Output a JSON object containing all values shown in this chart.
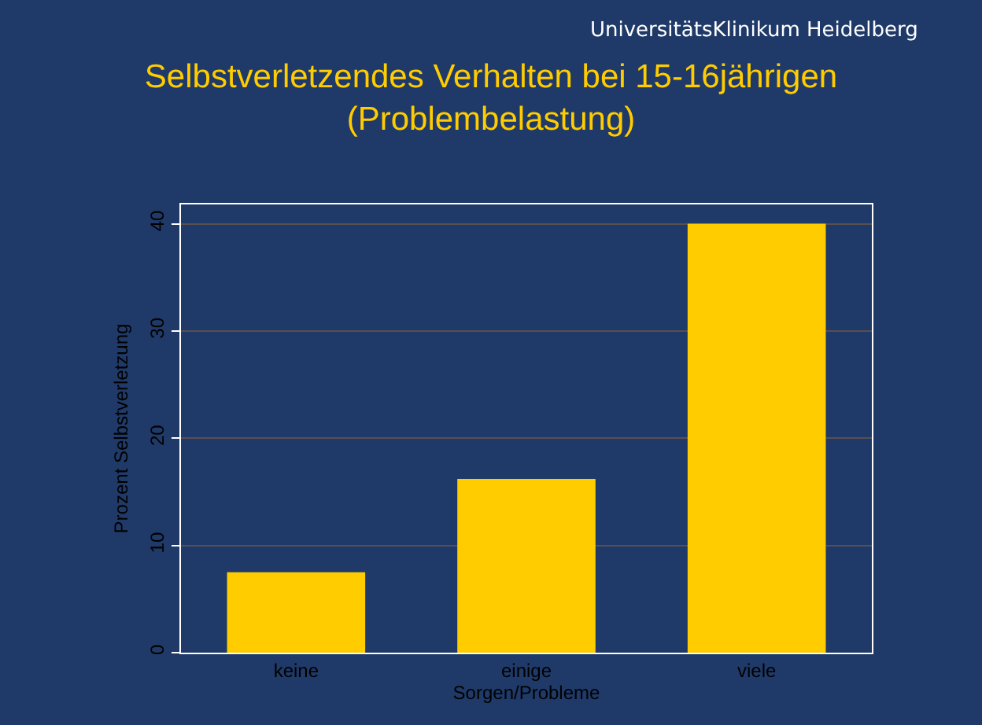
{
  "chart_data": {
    "type": "bar",
    "title": "Selbstverletzendes Verhalten bei 15-16jährigen\n(Problembelastung)",
    "xlabel": "Sorgen/Probleme",
    "ylabel": "Prozent Selbstverletzung",
    "categories": [
      "keine",
      "einige",
      "viele"
    ],
    "values": [
      7.5,
      16.2,
      40
    ],
    "color": "#ffcc00",
    "ylim": [
      0,
      41.8
    ],
    "yticks": [
      0,
      10,
      20,
      30,
      40
    ],
    "grid": "y",
    "annotations": [
      "UniversitätsKlinikum Heidelberg"
    ]
  }
}
